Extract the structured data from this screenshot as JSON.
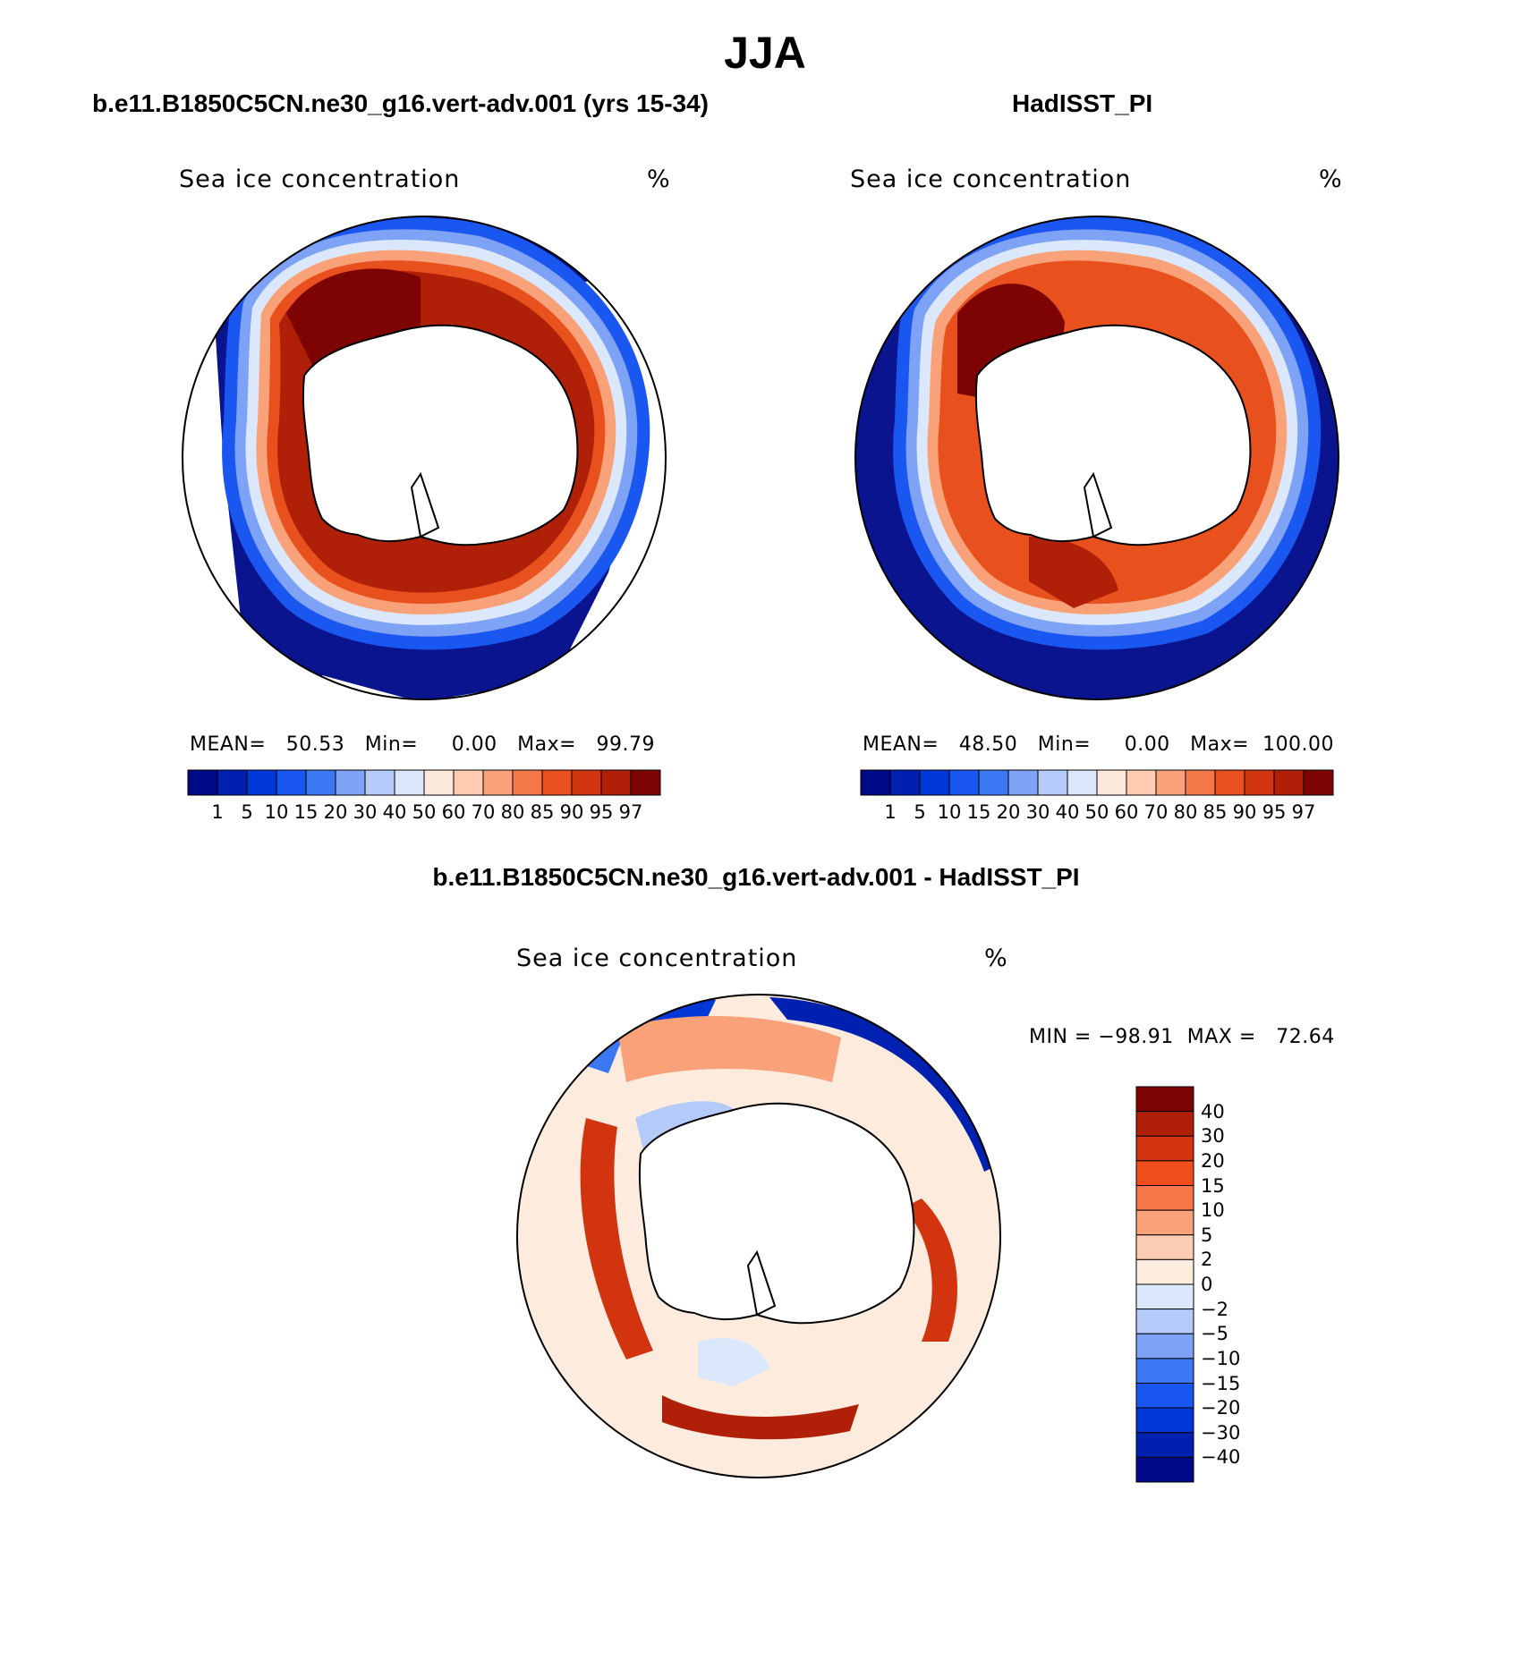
{
  "main_title": "JJA",
  "panels": [
    {
      "id": "model",
      "title": "b.e11.B1850C5CN.ne30_g16.vert-adv.001 (yrs 15-34)",
      "variable": "Sea ice concentration",
      "units": "%",
      "stats": "MEAN=   50.53   Min=     0.00   Max=   99.79"
    },
    {
      "id": "obs",
      "title": "HadISST_PI",
      "variable": "Sea ice concentration",
      "units": "%",
      "stats": "MEAN=   48.50   Min=     0.00   Max=  100.00"
    }
  ],
  "abs_colorbar": {
    "labels": [
      "1",
      "5",
      "10",
      "15",
      "20",
      "30",
      "40",
      "50",
      "60",
      "70",
      "80",
      "85",
      "90",
      "95",
      "97"
    ],
    "colors": [
      "#000a88",
      "#0020b0",
      "#0038d8",
      "#1a56f0",
      "#3c78f4",
      "#7ea2f6",
      "#b4caf8",
      "#dbe8fb",
      "#fde9d9",
      "#fccbb0",
      "#f9a27a",
      "#f47848",
      "#e8501e",
      "#d23410",
      "#b02008",
      "#7e0404"
    ]
  },
  "difference": {
    "title": "b.e11.B1850C5CN.ne30_g16.vert-adv.001 - HadISST_PI",
    "variable": "Sea ice concentration",
    "units": "%",
    "stats": "MIN = −98.91  MAX =   72.64",
    "colorbar": {
      "labels": [
        "40",
        "30",
        "20",
        "15",
        "10",
        "5",
        "2",
        "0",
        "−2",
        "−5",
        "−10",
        "−15",
        "−20",
        "−30",
        "−40"
      ],
      "colors": [
        "#7e0404",
        "#b02008",
        "#d23410",
        "#f24d1c",
        "#f7764a",
        "#f9a27a",
        "#fcccb2",
        "#fdebdd",
        "#dbe8fb",
        "#b4caf8",
        "#7ea2f6",
        "#3c78f4",
        "#1a56f0",
        "#0038d8",
        "#0020b0",
        "#000a88"
      ]
    }
  }
}
